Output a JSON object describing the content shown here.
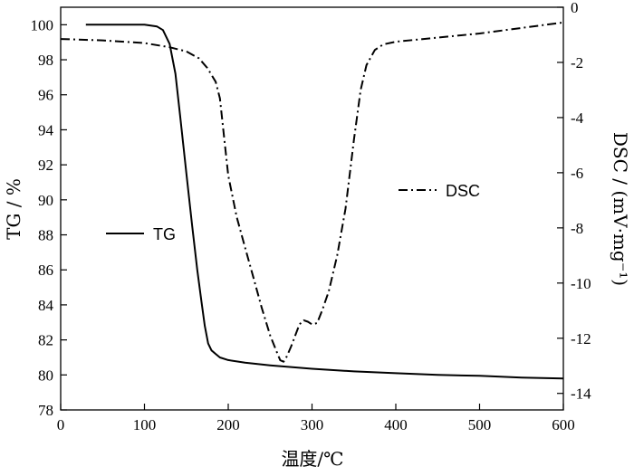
{
  "chart_data": {
    "type": "line",
    "title": "",
    "xlabel": "温度/℃",
    "ylabel_left": "TG / %",
    "ylabel_right": "DSC / (mV·mg⁻¹)",
    "xlim": [
      0,
      600
    ],
    "ylim_left": [
      78,
      101
    ],
    "ylim_right": [
      -14.6,
      0
    ],
    "x_ticks": [
      0,
      100,
      200,
      300,
      400,
      500,
      600
    ],
    "y_left_ticks": [
      78,
      80,
      82,
      84,
      86,
      88,
      90,
      92,
      94,
      96,
      98,
      100
    ],
    "y_right_ticks": [
      -14,
      -12,
      -10,
      -8,
      -6,
      -4,
      -2,
      0
    ],
    "grid": false,
    "colors": {
      "axis": "#000000",
      "series": "#000000"
    },
    "series": [
      {
        "name": "TG",
        "axis": "left",
        "line_style": "solid",
        "x": [
          30,
          60,
          100,
          115,
          122,
          130,
          137,
          143,
          150,
          157,
          163,
          168,
          172,
          176,
          180,
          185,
          190,
          200,
          220,
          250,
          300,
          350,
          400,
          450,
          500,
          550,
          600
        ],
        "y": [
          100.0,
          100.0,
          100.0,
          99.9,
          99.7,
          98.9,
          97.2,
          94.6,
          91.5,
          88.5,
          86.0,
          84.2,
          82.8,
          81.8,
          81.4,
          81.2,
          81.0,
          80.85,
          80.7,
          80.55,
          80.35,
          80.2,
          80.1,
          80.0,
          79.95,
          79.85,
          79.8
        ]
      },
      {
        "name": "DSC",
        "axis": "right",
        "line_style": "dashdot",
        "x": [
          0,
          50,
          100,
          130,
          150,
          165,
          175,
          185,
          190,
          195,
          200,
          210,
          220,
          230,
          240,
          250,
          258,
          262,
          266,
          270,
          275,
          280,
          285,
          290,
          295,
          300,
          306,
          312,
          320,
          330,
          340,
          350,
          358,
          365,
          375,
          385,
          400,
          500,
          600
        ],
        "y": [
          -1.15,
          -1.2,
          -1.3,
          -1.45,
          -1.6,
          -1.85,
          -2.2,
          -2.7,
          -3.3,
          -4.7,
          -6.1,
          -7.6,
          -8.7,
          -9.8,
          -10.9,
          -11.9,
          -12.5,
          -12.8,
          -12.85,
          -12.65,
          -12.3,
          -11.9,
          -11.5,
          -11.35,
          -11.4,
          -11.5,
          -11.45,
          -11.0,
          -10.3,
          -9.0,
          -7.3,
          -4.8,
          -3.0,
          -2.1,
          -1.55,
          -1.35,
          -1.25,
          -0.95,
          -0.55
        ]
      }
    ],
    "legend": [
      {
        "label": "TG",
        "series": "TG"
      },
      {
        "label": "DSC",
        "series": "DSC"
      }
    ]
  }
}
